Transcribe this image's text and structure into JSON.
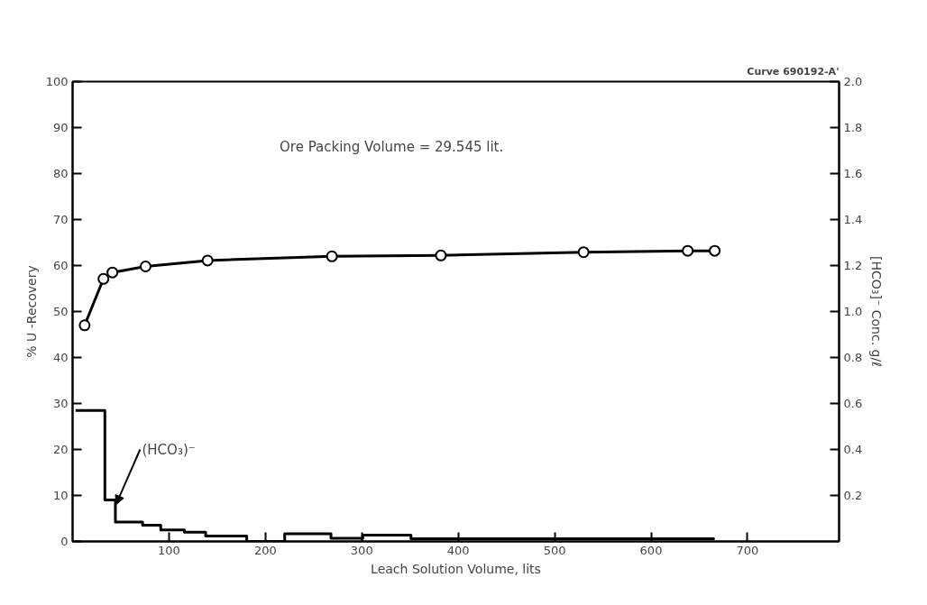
{
  "chart_data": {
    "type": "line",
    "xlabel": "Leach Solution Volume, lits",
    "ylabel": "% U -Recovery",
    "y2label": "[HCO₃]⁻ Conc. g/ℓ",
    "annotations": [
      "Curve 690192-A'",
      "Ore Packing Volume = 29.545 lit.",
      {
        "text": "(HCO₃)⁻",
        "x": 45,
        "y": 8
      }
    ],
    "xlim": [
      0,
      795
    ],
    "xticks": [
      100,
      200,
      300,
      400,
      500,
      600,
      700
    ],
    "ylim": [
      0,
      100
    ],
    "yticks": [
      0,
      10,
      20,
      30,
      40,
      50,
      60,
      70,
      80,
      90,
      100
    ],
    "y2lim": [
      0,
      2.0
    ],
    "y2ticks": [
      0.2,
      0.4,
      0.6,
      0.8,
      {
        "value": 1.0,
        "label": "1.0"
      },
      1.2,
      1.4,
      1.6,
      1.8,
      {
        "value": 2.0,
        "label": "2.0"
      }
    ],
    "grid": false,
    "series": [
      {
        "marker": "circle",
        "color": "#000000",
        "x": [
          12.5,
          32,
          41.3,
          75.7,
          140,
          269,
          382,
          530,
          638,
          666
        ],
        "values": [
          47,
          57.1,
          58.5,
          59.8,
          61.1,
          62.0,
          62.2,
          62.9,
          63.2,
          63.2
        ]
      },
      {
        "type": "step",
        "axis": "y2",
        "marker": "none",
        "color": "#000000",
        "x": [
          3,
          33.5,
          44.4,
          72.6,
          91.4,
          116,
          138,
          180.6,
          220,
          268,
          301,
          351,
          666
        ],
        "values": [
          0.57,
          0.18,
          0.084,
          0.071,
          0.05,
          0.04,
          0.024,
          0,
          0.033,
          0.014,
          0.027,
          0.012,
          0.012
        ]
      }
    ]
  }
}
